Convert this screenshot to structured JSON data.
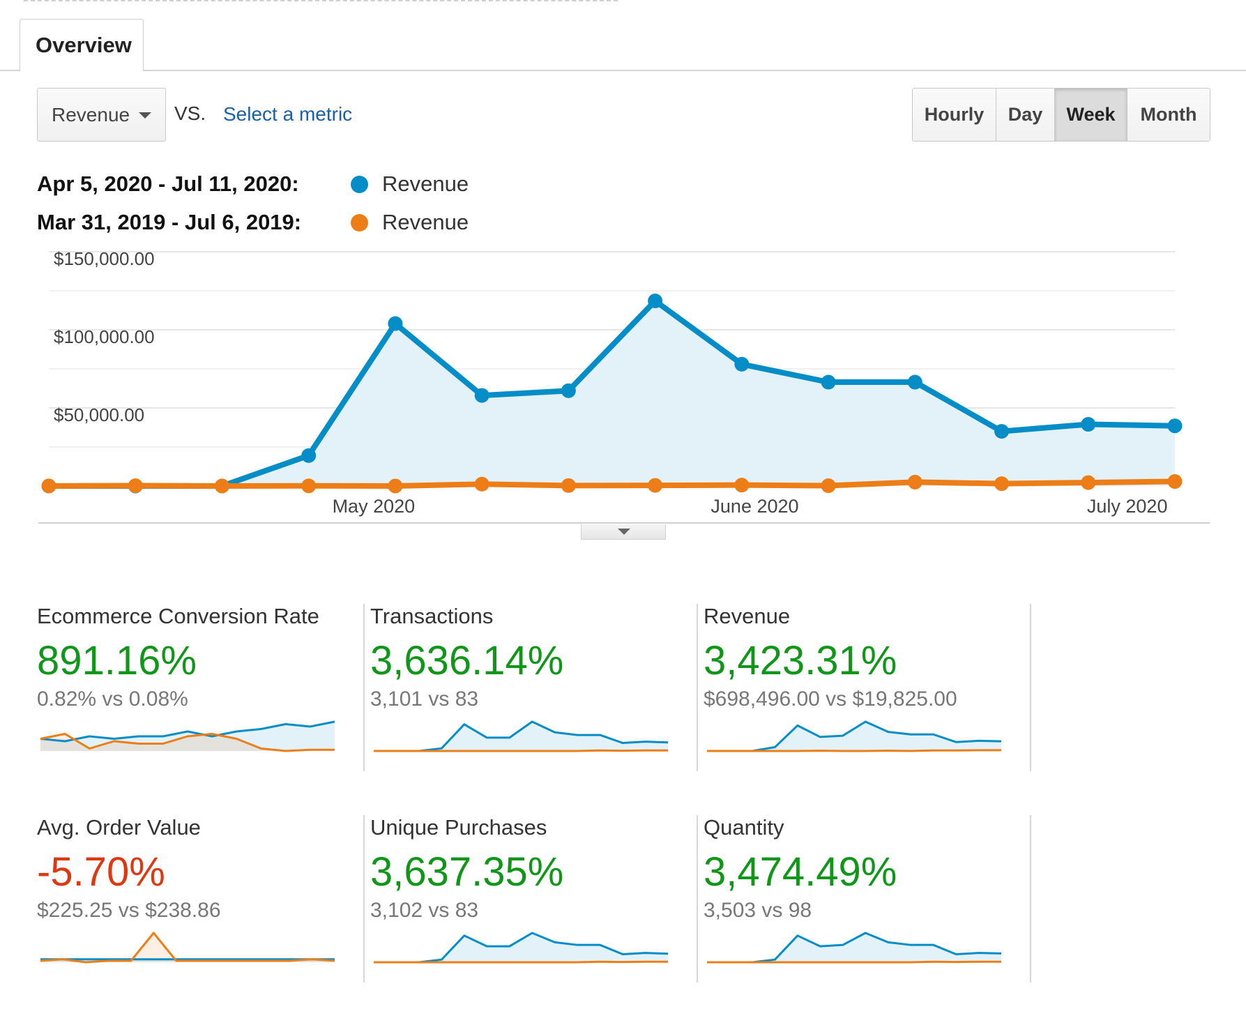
{
  "tabs": {
    "overview": "Overview"
  },
  "toolbar": {
    "primary_metric": "Revenue",
    "vs_label": "VS.",
    "select_metric": "Select a metric",
    "periods": [
      "Hourly",
      "Day",
      "Week",
      "Month"
    ],
    "active_period": "Week"
  },
  "legend": [
    {
      "range": "Apr 5, 2020 - Jul 11, 2020:",
      "label": "Revenue",
      "color": "#058dc7"
    },
    {
      "range": "Mar 31, 2019 - Jul 6, 2019:",
      "label": "Revenue",
      "color": "#ed7e17"
    }
  ],
  "chart_data": {
    "type": "line",
    "y_ticks": [
      "$150,000.00",
      "$100,000.00",
      "$50,000.00"
    ],
    "ylim": [
      0,
      150000
    ],
    "x_tick_labels": [
      {
        "label": "May 2020",
        "at": 3.75
      },
      {
        "label": "June 2020",
        "at": 8.15
      },
      {
        "label": "July 2020",
        "at": 12.45
      }
    ],
    "series": [
      {
        "name": "Revenue",
        "period": "Apr 5, 2020 - Jul 11, 2020",
        "color": "#058dc7",
        "values": [
          0,
          0,
          0,
          19500,
          104000,
          58000,
          61000,
          118500,
          78000,
          66500,
          66500,
          35000,
          39500,
          38500
        ]
      },
      {
        "name": "Revenue",
        "period": "Mar 31, 2019 - Jul 6, 2019",
        "color": "#ed7e17",
        "values": [
          0,
          200,
          0,
          100,
          0,
          1200,
          300,
          400,
          600,
          200,
          2500,
          1500,
          2200,
          2900
        ]
      }
    ],
    "grid": true
  },
  "scorecards": [
    {
      "name": "Ecommerce Conversion Rate",
      "change": "891.16%",
      "change_color": "#109618",
      "compare": "0.82% vs 0.08%",
      "spark": {
        "current": [
          5,
          4,
          6,
          5,
          6,
          6,
          8,
          6,
          8,
          9,
          11,
          10,
          12
        ],
        "previous": [
          5,
          7,
          1,
          4,
          3,
          3,
          6,
          7,
          5,
          1,
          0,
          0.5,
          0.5
        ]
      }
    },
    {
      "name": "Transactions",
      "change": "3,636.14%",
      "change_color": "#109618",
      "compare": "3,101 vs 83",
      "spark": {
        "current": [
          0,
          0,
          0,
          1,
          10,
          5,
          5,
          11,
          7,
          6,
          6,
          3,
          3.5,
          3.2
        ],
        "previous": [
          0,
          0,
          0,
          0,
          0,
          0,
          0,
          0,
          0,
          0,
          0.2,
          0.1,
          0.2,
          0.2
        ]
      }
    },
    {
      "name": "Revenue",
      "change": "3,423.31%",
      "change_color": "#109618",
      "compare": "$698,496.00 vs $19,825.00",
      "spark": {
        "current": [
          0,
          0,
          0,
          1.5,
          10,
          5.5,
          6,
          11.5,
          7.5,
          6.5,
          6.5,
          3.5,
          4,
          3.8
        ],
        "previous": [
          0,
          0,
          0,
          0,
          0,
          0.1,
          0,
          0,
          0.1,
          0,
          0.2,
          0.2,
          0.3,
          0.3
        ]
      }
    },
    {
      "name": "Avg. Order Value",
      "change": "-5.70%",
      "change_color": "#dc3912",
      "compare": "$225.25 vs $238.86",
      "spark": {
        "current": [
          1,
          1,
          1,
          1,
          1,
          1,
          1,
          1,
          1,
          1,
          1,
          1,
          1,
          1
        ],
        "previous": [
          0.5,
          1,
          0,
          0.5,
          0.5,
          10,
          0.5,
          0.5,
          0.5,
          0.5,
          0.5,
          0.5,
          1,
          0.5
        ]
      }
    },
    {
      "name": "Unique Purchases",
      "change": "3,637.35%",
      "change_color": "#109618",
      "compare": "3,102 vs 83",
      "spark": {
        "current": [
          0,
          0,
          0,
          1,
          10,
          6,
          6,
          11,
          7.5,
          6.5,
          6.5,
          3,
          3.5,
          3.2
        ],
        "previous": [
          0,
          0,
          0,
          0,
          0,
          0,
          0,
          0,
          0,
          0,
          0.2,
          0.1,
          0.2,
          0.2
        ]
      }
    },
    {
      "name": "Quantity",
      "change": "3,474.49%",
      "change_color": "#109618",
      "compare": "3,503 vs 98",
      "spark": {
        "current": [
          0,
          0,
          0,
          1,
          10,
          6,
          6.5,
          11,
          7.5,
          6.5,
          6.5,
          3,
          3.5,
          3.3
        ],
        "previous": [
          0,
          0,
          0,
          0,
          0,
          0,
          0,
          0,
          0,
          0,
          0.2,
          0.1,
          0.2,
          0.2
        ]
      }
    }
  ]
}
